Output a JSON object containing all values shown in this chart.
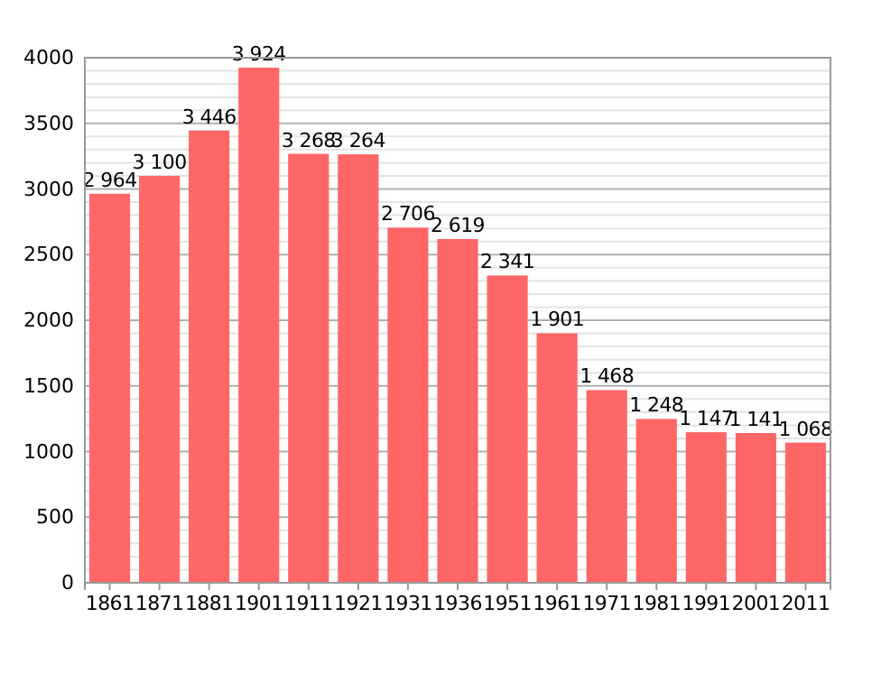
{
  "chart_data": {
    "type": "bar",
    "categories": [
      "1861",
      "1871",
      "1881",
      "1901",
      "1911",
      "1921",
      "1931",
      "1936",
      "1951",
      "1961",
      "1971",
      "1981",
      "1991",
      "2001",
      "2011"
    ],
    "values": [
      2964,
      3100,
      3446,
      3924,
      3268,
      3264,
      2706,
      2619,
      2341,
      1901,
      1468,
      1248,
      1147,
      1141,
      1068
    ],
    "value_labels": [
      "2 964",
      "3 100",
      "3 446",
      "3 924",
      "3 268",
      "3 264",
      "2 706",
      "2 619",
      "2 341",
      "1 901",
      "1 468",
      "1 248",
      "1 147",
      "1 141",
      "1 068"
    ],
    "color": "#ff6666",
    "ylim": [
      0,
      4000
    ],
    "yticks": [
      0,
      {
        "value": 100,
        "label": null
      },
      {
        "value": 200,
        "label": null
      },
      {
        "value": 300,
        "label": null
      },
      {
        "value": 400,
        "label": null
      },
      500,
      {
        "value": 600,
        "label": null
      },
      {
        "value": 700,
        "label": null
      },
      {
        "value": 800,
        "label": null
      },
      {
        "value": 900,
        "label": null
      },
      1000,
      {
        "value": 1100,
        "label": null
      },
      {
        "value": 1200,
        "label": null
      },
      {
        "value": 1300,
        "label": null
      },
      {
        "value": 1400,
        "label": null
      },
      1500,
      {
        "value": 1600,
        "label": null
      },
      {
        "value": 1700,
        "label": null
      },
      {
        "value": 1800,
        "label": null
      },
      {
        "value": 1900,
        "label": null
      },
      2000,
      {
        "value": 2100,
        "label": null
      },
      {
        "value": 2200,
        "label": null
      },
      {
        "value": 2300,
        "label": null
      },
      {
        "value": 2400,
        "label": null
      },
      2500,
      {
        "value": 2600,
        "label": null
      },
      {
        "value": 2700,
        "label": null
      },
      {
        "value": 2800,
        "label": null
      },
      {
        "value": 2900,
        "label": null
      },
      3000,
      {
        "value": 3100,
        "label": null
      },
      {
        "value": 3200,
        "label": null
      },
      {
        "value": 3300,
        "label": null
      },
      {
        "value": 3400,
        "label": null
      },
      3500,
      {
        "value": 3600,
        "label": null
      },
      {
        "value": 3700,
        "label": null
      },
      {
        "value": 3800,
        "label": null
      },
      {
        "value": 3900,
        "label": null
      },
      4000
    ],
    "grid": "y"
  }
}
